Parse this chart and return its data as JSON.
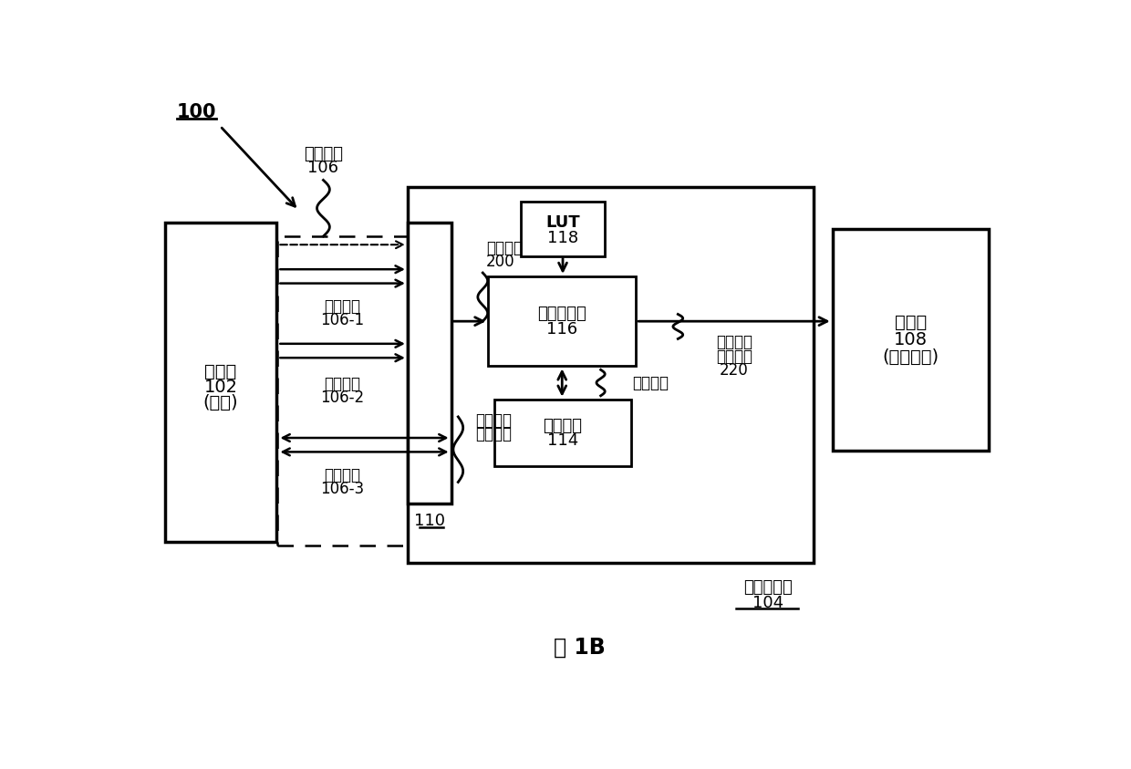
{
  "bg_color": "#ffffff",
  "fig_label": "图 1B",
  "label_100": "100",
  "label_106_line1": "系统总线",
  "label_106_line2": "106",
  "label_102_line1": "处理器",
  "label_102_line2": "102",
  "label_102_line3": "(系统)",
  "label_110": "110",
  "label_lut_line1": "LUT",
  "label_lut_line2": "118",
  "label_seq_line1": "指令定序器",
  "label_seq_line2": "116",
  "label_res_line1": "资源标志",
  "label_res_line2": "114",
  "label_108_line1": "存储器",
  "label_108_line2": "108",
  "label_108_line3": "(共享资源)",
  "label_104_line1": "通用控制器",
  "label_104_line2": "104",
  "label_addr_line1": "地址总线",
  "label_addr_line2": "106-1",
  "label_cmd_line1": "指令总线",
  "label_cmd_line2": "106-2",
  "label_data_line1": "数据总线",
  "label_data_line2": "106-3",
  "label_gen_cmd_line1": "通用指令",
  "label_gen_cmd_line2": "200",
  "label_res_state": "资源状态",
  "label_ordered_line1": "已排序的",
  "label_ordered_line2": "通用指令",
  "label_ordered_line3": "220",
  "label_config_line1": "可配置的",
  "label_config_line2": "系统接口"
}
